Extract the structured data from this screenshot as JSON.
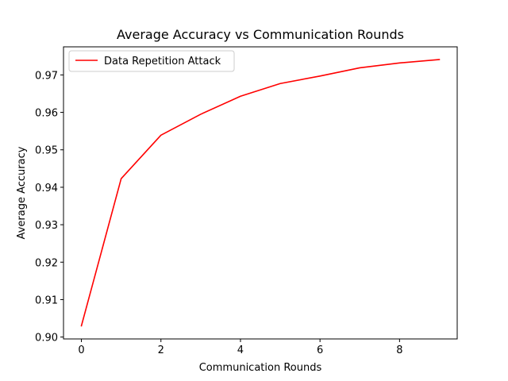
{
  "chart_data": {
    "type": "line",
    "title": "Average Accuracy vs Communication Rounds",
    "xlabel": "Communication Rounds",
    "ylabel": "Average Accuracy",
    "xlim": [
      -0.45,
      9.45
    ],
    "ylim": [
      0.8995,
      0.9775
    ],
    "xticks": [
      0,
      2,
      4,
      6,
      8
    ],
    "xtick_labels": [
      "0",
      "2",
      "4",
      "6",
      "8"
    ],
    "yticks": [
      0.9,
      0.91,
      0.92,
      0.93,
      0.94,
      0.95,
      0.96,
      0.97
    ],
    "ytick_labels": [
      "0.90",
      "0.91",
      "0.92",
      "0.93",
      "0.94",
      "0.95",
      "0.96",
      "0.97"
    ],
    "grid": false,
    "legend_position": "top-left",
    "series": [
      {
        "name": "Data Repetition Attack",
        "color": "#ff0000",
        "x": [
          0,
          1,
          2,
          3,
          4,
          5,
          6,
          7,
          8,
          9
        ],
        "y": [
          0.903,
          0.9423,
          0.9539,
          0.9595,
          0.9643,
          0.9677,
          0.9697,
          0.9719,
          0.9732,
          0.9741
        ]
      }
    ]
  }
}
